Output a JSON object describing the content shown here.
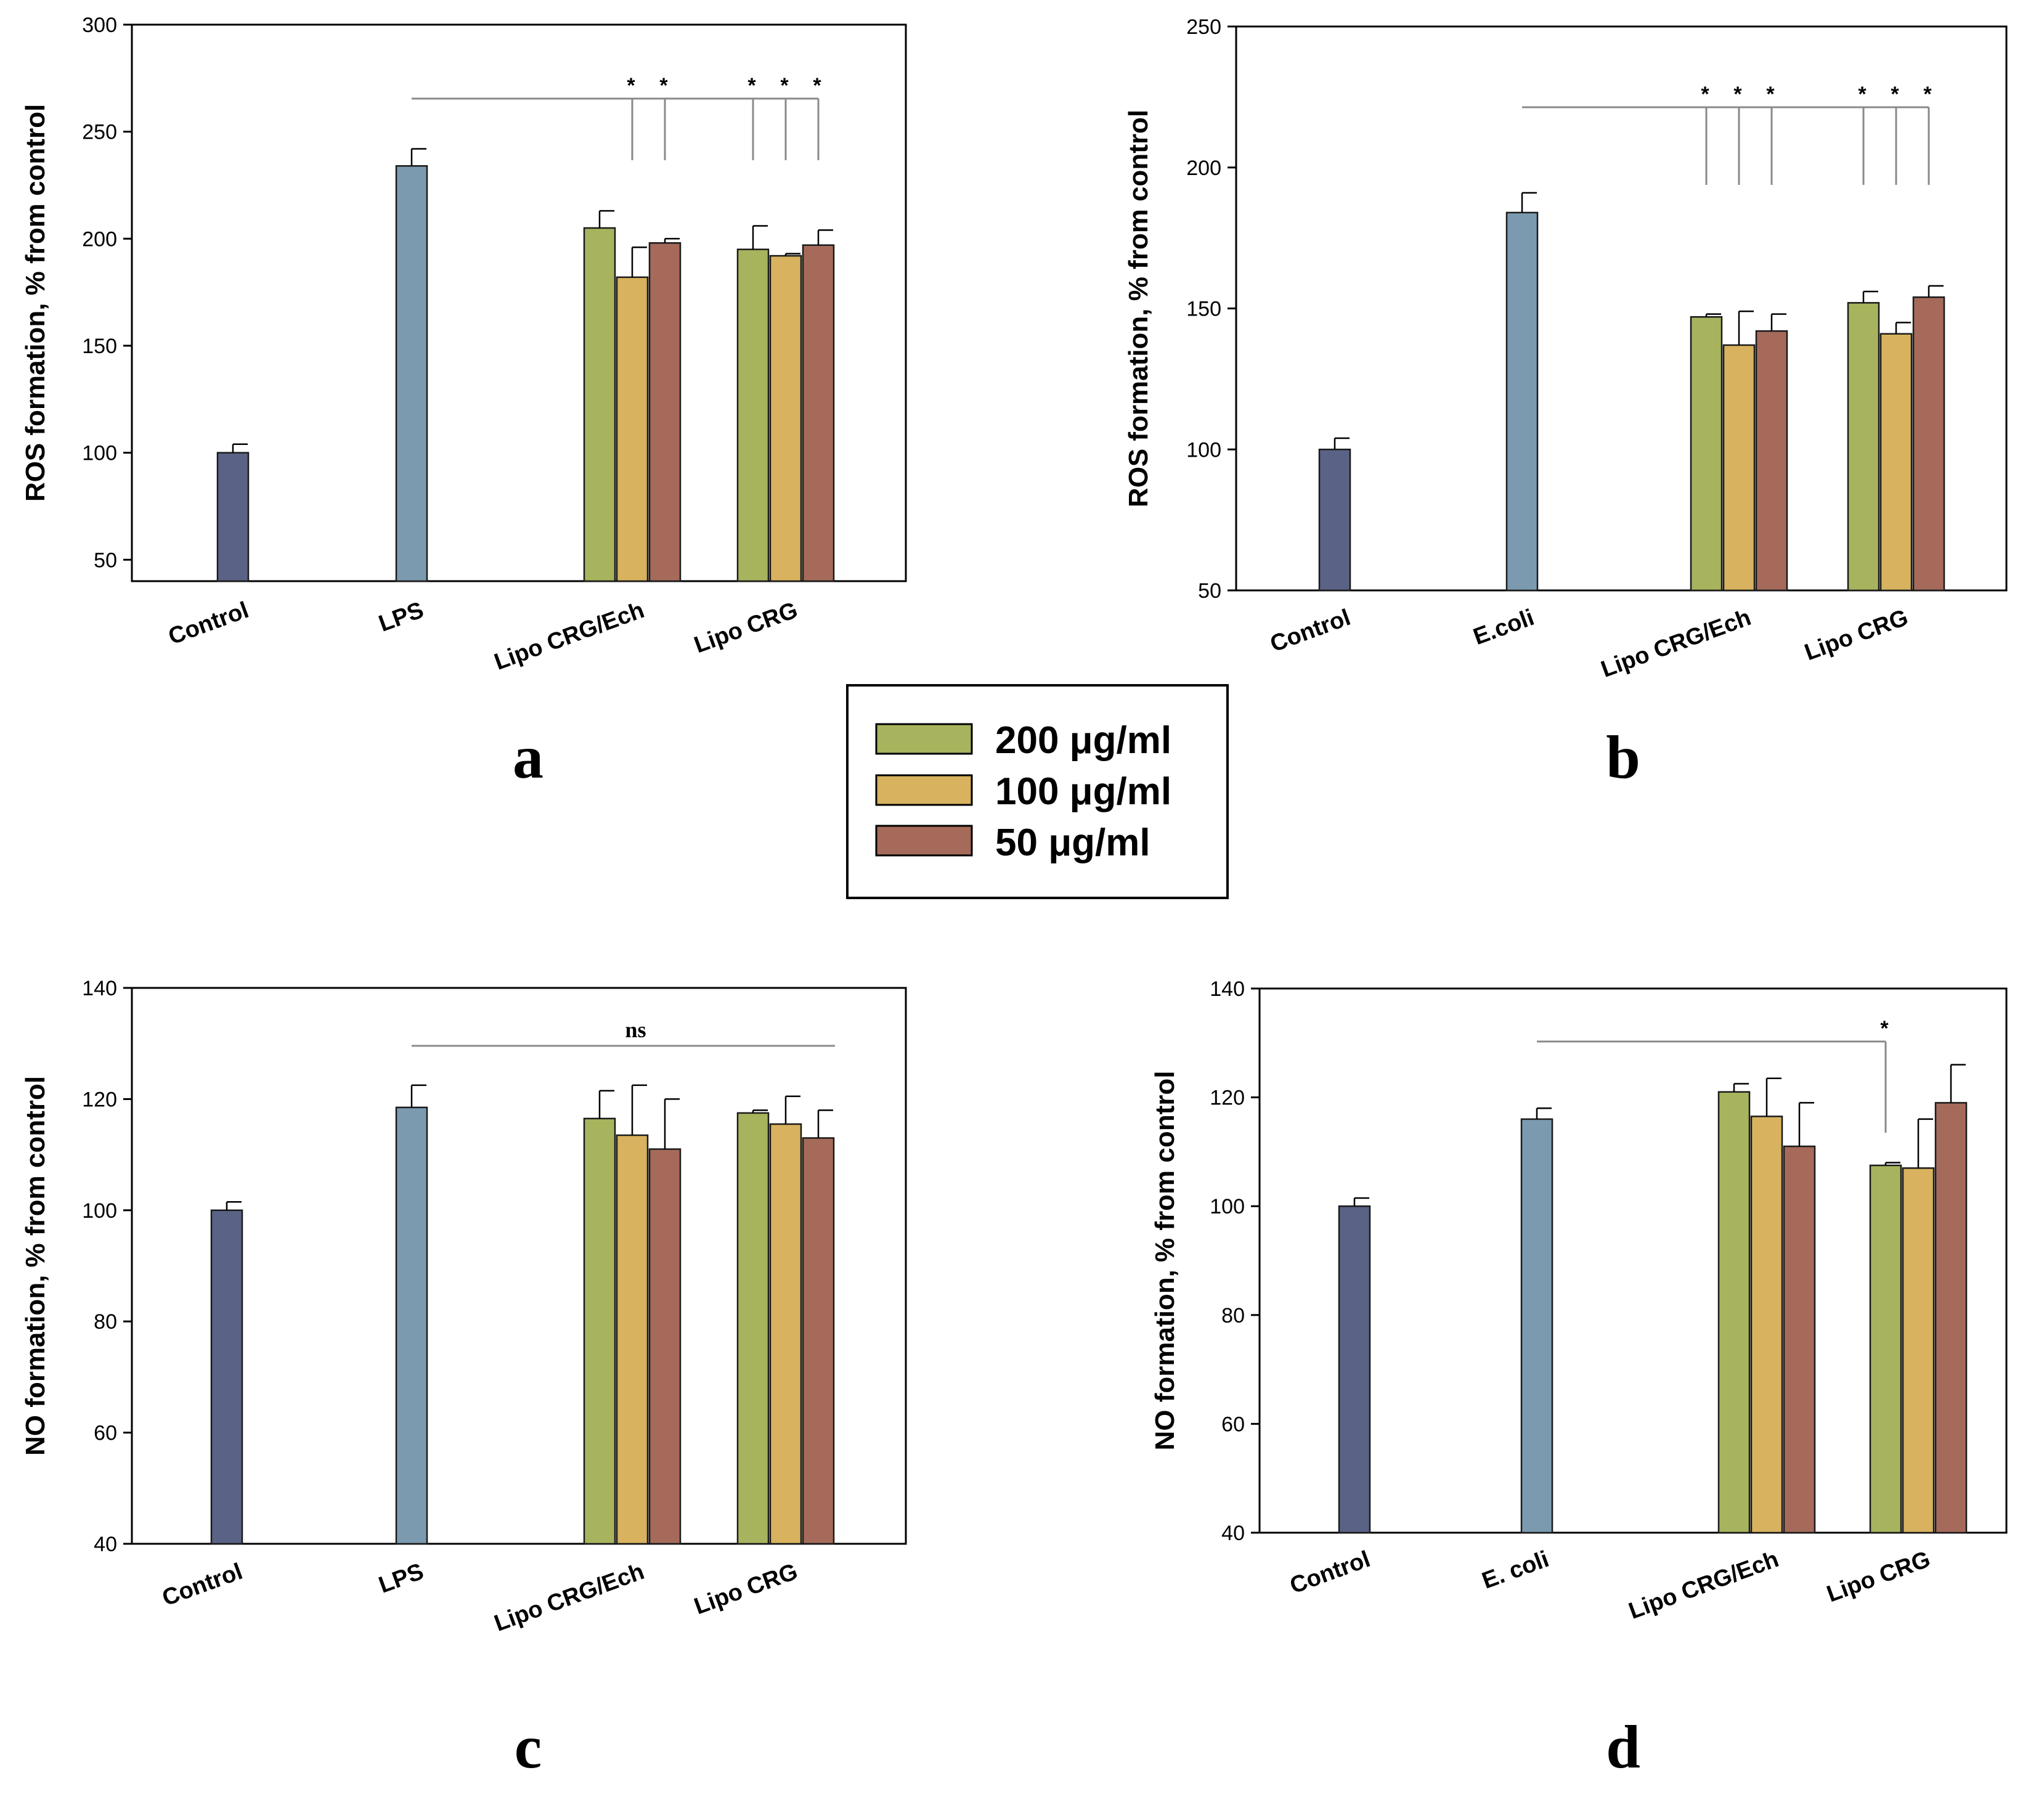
{
  "colors": {
    "control": "#5a6386",
    "stimulus": "#7b9aaf",
    "dose_200": "#a8b35e",
    "dose_100": "#d8b25e",
    "dose_50": "#a56a5a",
    "bar_stroke": "#1a1a1a",
    "bracket": "#8a8a8a"
  },
  "legend": {
    "items": [
      {
        "label": "200 μg/ml",
        "color_key": "dose_200"
      },
      {
        "label": "100 μg/ml",
        "color_key": "dose_100"
      },
      {
        "label": "50 μg/ml",
        "color_key": "dose_50"
      }
    ]
  },
  "chart_data": [
    {
      "panel": "a",
      "type": "bar",
      "ylabel": "ROS formation, % from control",
      "ylim": [
        40,
        300
      ],
      "yticks": [
        50,
        100,
        150,
        200,
        250,
        300
      ],
      "categories": [
        "Control",
        "LPS",
        "Lipo CRG/Ech",
        "Lipo CRG"
      ],
      "groups": [
        {
          "category": "Control",
          "bars": [
            {
              "color_key": "control",
              "value": 100,
              "err": 4
            }
          ]
        },
        {
          "category": "LPS",
          "bars": [
            {
              "color_key": "stimulus",
              "value": 234,
              "err": 8
            }
          ]
        },
        {
          "category": "Lipo CRG/Ech",
          "bars": [
            {
              "series": "200 μg/ml",
              "color_key": "dose_200",
              "value": 205,
              "err": 8
            },
            {
              "series": "100 μg/ml",
              "color_key": "dose_100",
              "value": 182,
              "err": 14
            },
            {
              "series": "50 μg/ml",
              "color_key": "dose_50",
              "value": 198,
              "err": 2
            }
          ]
        },
        {
          "category": "Lipo CRG",
          "bars": [
            {
              "series": "200 μg/ml",
              "color_key": "dose_200",
              "value": 195,
              "err": 11
            },
            {
              "series": "100 μg/ml",
              "color_key": "dose_100",
              "value": 192,
              "err": 1
            },
            {
              "series": "50 μg/ml",
              "color_key": "dose_50",
              "value": 197,
              "err": 7
            }
          ]
        }
      ],
      "significance": {
        "label": "*",
        "reference": "LPS",
        "marked": [
          [
            2,
            1
          ],
          [
            2,
            2
          ],
          [
            3,
            0
          ],
          [
            3,
            1
          ],
          [
            3,
            2
          ]
        ]
      }
    },
    {
      "panel": "b",
      "type": "bar",
      "ylabel": "ROS formation, % from control",
      "ylim": [
        50,
        250
      ],
      "yticks": [
        50,
        100,
        150,
        200,
        250
      ],
      "categories": [
        "Control",
        "E.coli",
        "Lipo CRG/Ech",
        "Lipo CRG"
      ],
      "groups": [
        {
          "category": "Control",
          "bars": [
            {
              "color_key": "control",
              "value": 100,
              "err": 4
            }
          ]
        },
        {
          "category": "E.coli",
          "bars": [
            {
              "color_key": "stimulus",
              "value": 184,
              "err": 7
            }
          ]
        },
        {
          "category": "Lipo CRG/Ech",
          "bars": [
            {
              "series": "200 μg/ml",
              "color_key": "dose_200",
              "value": 147,
              "err": 1
            },
            {
              "series": "100 μg/ml",
              "color_key": "dose_100",
              "value": 137,
              "err": 12
            },
            {
              "series": "50 μg/ml",
              "color_key": "dose_50",
              "value": 142,
              "err": 6
            }
          ]
        },
        {
          "category": "Lipo CRG",
          "bars": [
            {
              "series": "200 μg/ml",
              "color_key": "dose_200",
              "value": 152,
              "err": 4
            },
            {
              "series": "100 μg/ml",
              "color_key": "dose_100",
              "value": 141,
              "err": 4
            },
            {
              "series": "50 μg/ml",
              "color_key": "dose_50",
              "value": 154,
              "err": 4
            }
          ]
        }
      ],
      "significance": {
        "label": "*",
        "reference": "E.coli",
        "marked": [
          [
            2,
            0
          ],
          [
            2,
            1
          ],
          [
            2,
            2
          ],
          [
            3,
            0
          ],
          [
            3,
            1
          ],
          [
            3,
            2
          ]
        ]
      }
    },
    {
      "panel": "c",
      "type": "bar",
      "ylabel": "NO formation, % from control",
      "ylim": [
        40,
        140
      ],
      "yticks": [
        40,
        60,
        80,
        100,
        120,
        140
      ],
      "categories": [
        "Control",
        "LPS",
        "Lipo CRG/Ech",
        "Lipo CRG"
      ],
      "groups": [
        {
          "category": "Control",
          "bars": [
            {
              "color_key": "control",
              "value": 100,
              "err": 1.5
            }
          ]
        },
        {
          "category": "LPS",
          "bars": [
            {
              "color_key": "stimulus",
              "value": 118.5,
              "err": 4
            }
          ]
        },
        {
          "category": "Lipo CRG/Ech",
          "bars": [
            {
              "series": "200 μg/ml",
              "color_key": "dose_200",
              "value": 116.5,
              "err": 5
            },
            {
              "series": "100 μg/ml",
              "color_key": "dose_100",
              "value": 113.5,
              "err": 9
            },
            {
              "series": "50 μg/ml",
              "color_key": "dose_50",
              "value": 111,
              "err": 9
            }
          ]
        },
        {
          "category": "Lipo CRG",
          "bars": [
            {
              "series": "200 μg/ml",
              "color_key": "dose_200",
              "value": 117.5,
              "err": 0.5
            },
            {
              "series": "100 μg/ml",
              "color_key": "dose_100",
              "value": 115.5,
              "err": 5
            },
            {
              "series": "50 μg/ml",
              "color_key": "dose_50",
              "value": 113,
              "err": 5
            }
          ]
        }
      ],
      "significance": {
        "label": "ns",
        "reference": "LPS",
        "marked": []
      }
    },
    {
      "panel": "d",
      "type": "bar",
      "ylabel": "NO formation, % from control",
      "ylim": [
        40,
        140
      ],
      "yticks": [
        40,
        60,
        80,
        100,
        120,
        140
      ],
      "categories": [
        "Control",
        "E. coli",
        "Lipo CRG/Ech",
        "Lipo CRG"
      ],
      "groups": [
        {
          "category": "Control",
          "bars": [
            {
              "color_key": "control",
              "value": 100,
              "err": 1.5
            }
          ]
        },
        {
          "category": "E. coli",
          "bars": [
            {
              "color_key": "stimulus",
              "value": 116,
              "err": 2
            }
          ]
        },
        {
          "category": "Lipo CRG/Ech",
          "bars": [
            {
              "series": "200 μg/ml",
              "color_key": "dose_200",
              "value": 121,
              "err": 1.5
            },
            {
              "series": "100 μg/ml",
              "color_key": "dose_100",
              "value": 116.5,
              "err": 7
            },
            {
              "series": "50 μg/ml",
              "color_key": "dose_50",
              "value": 111,
              "err": 8
            }
          ]
        },
        {
          "category": "Lipo CRG",
          "bars": [
            {
              "series": "200 μg/ml",
              "color_key": "dose_200",
              "value": 107.5,
              "err": 0.5
            },
            {
              "series": "100 μg/ml",
              "color_key": "dose_100",
              "value": 107,
              "err": 9
            },
            {
              "series": "50 μg/ml",
              "color_key": "dose_50",
              "value": 119,
              "err": 7
            }
          ]
        }
      ],
      "significance": {
        "label": "*",
        "reference": "E. coli",
        "marked": [
          [
            3,
            0
          ]
        ]
      }
    }
  ]
}
